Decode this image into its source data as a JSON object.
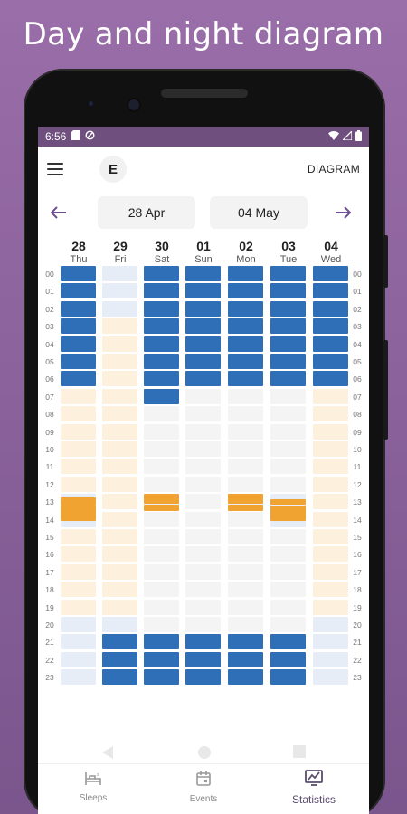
{
  "promo_title": "Day and night diagram",
  "status_bar": {
    "time": "6:56"
  },
  "app_bar": {
    "avatar_letter": "E",
    "action_label": "DIAGRAM"
  },
  "date_range": {
    "start": "28 Apr",
    "end": "04 May"
  },
  "days": [
    {
      "num": "28",
      "name": "Thu"
    },
    {
      "num": "29",
      "name": "Fri"
    },
    {
      "num": "30",
      "name": "Sat"
    },
    {
      "num": "01",
      "name": "Sun"
    },
    {
      "num": "02",
      "name": "Mon"
    },
    {
      "num": "03",
      "name": "Tue"
    },
    {
      "num": "04",
      "name": "Wed"
    }
  ],
  "hours": [
    "00",
    "01",
    "02",
    "03",
    "04",
    "05",
    "06",
    "07",
    "08",
    "09",
    "10",
    "11",
    "12",
    "13",
    "14",
    "15",
    "16",
    "17",
    "18",
    "19",
    "20",
    "21",
    "22",
    "23"
  ],
  "colors": {
    "sleep": "#2e6fb8",
    "nap": "#f0a330",
    "day": "#fdf0dd",
    "night": "#e6edf6",
    "empty": "#f4f4f4",
    "accent": "#6a4f93"
  },
  "grid_states": [
    [
      "S",
      "S",
      "S",
      "S",
      "S",
      "S",
      "S",
      "D",
      "D",
      "D",
      "D",
      "D",
      "D",
      "N",
      "N",
      "D",
      "D",
      "D",
      "D",
      "D",
      "N",
      "N",
      "N",
      "N"
    ],
    [
      "N",
      "N",
      "N",
      "D",
      "D",
      "D",
      "D",
      "D",
      "D",
      "D",
      "D",
      "D",
      "D",
      "D",
      "D",
      "D",
      "D",
      "D",
      "D",
      "D",
      "N",
      "S",
      "S",
      "S"
    ],
    [
      "S",
      "S",
      "S",
      "S",
      "S",
      "S",
      "S",
      "S",
      "E",
      "E",
      "E",
      "E",
      "E",
      "N",
      "E",
      "E",
      "E",
      "E",
      "E",
      "E",
      "E",
      "S",
      "S",
      "S"
    ],
    [
      "S",
      "S",
      "S",
      "S",
      "S",
      "S",
      "S",
      "E",
      "E",
      "E",
      "E",
      "E",
      "E",
      "E",
      "E",
      "E",
      "E",
      "E",
      "E",
      "E",
      "E",
      "S",
      "S",
      "S"
    ],
    [
      "S",
      "S",
      "S",
      "S",
      "S",
      "S",
      "S",
      "E",
      "E",
      "E",
      "E",
      "E",
      "E",
      "N",
      "E",
      "E",
      "E",
      "E",
      "E",
      "E",
      "E",
      "S",
      "S",
      "S"
    ],
    [
      "S",
      "S",
      "S",
      "S",
      "S",
      "S",
      "S",
      "E",
      "E",
      "E",
      "E",
      "E",
      "E",
      "N",
      "N",
      "E",
      "E",
      "E",
      "E",
      "E",
      "E",
      "S",
      "S",
      "S"
    ],
    [
      "S",
      "S",
      "S",
      "S",
      "S",
      "S",
      "S",
      "D",
      "D",
      "D",
      "D",
      "D",
      "D",
      "D",
      "D",
      "D",
      "D",
      "D",
      "D",
      "D",
      "N",
      "N",
      "N",
      "N"
    ]
  ],
  "bottom_nav": [
    {
      "label": "Sleeps",
      "icon": "bed-icon"
    },
    {
      "label": "Events",
      "icon": "calendar-icon"
    },
    {
      "label": "Statistics",
      "icon": "chart-icon"
    }
  ]
}
